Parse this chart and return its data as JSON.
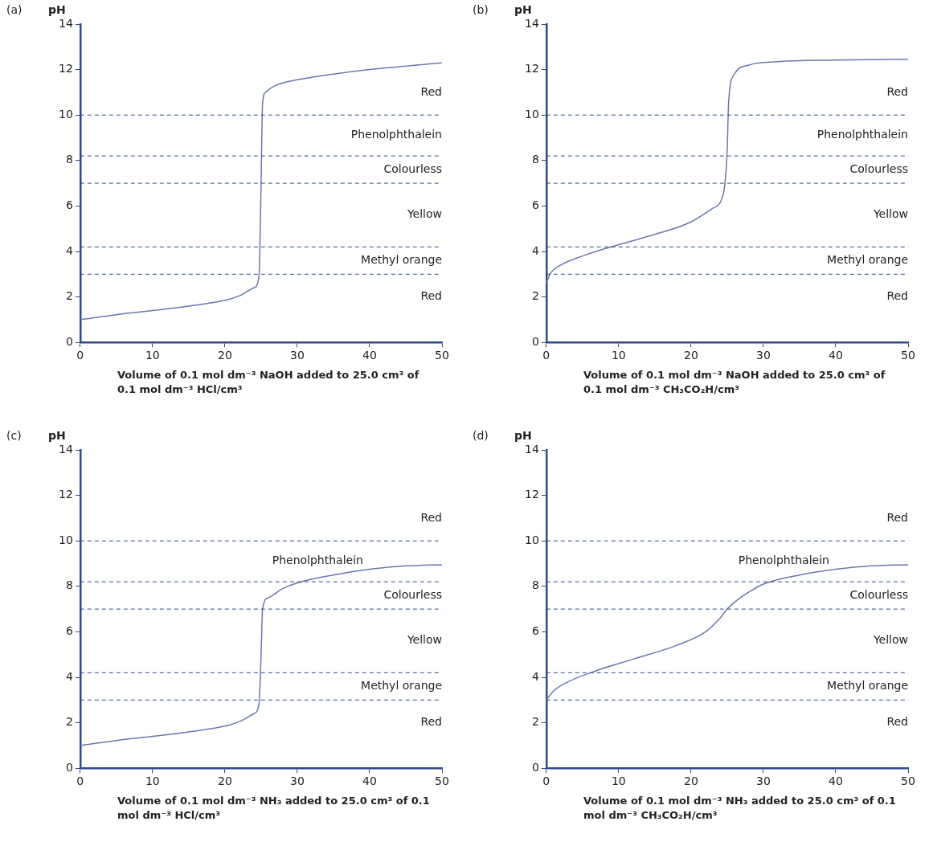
{
  "chart_data": [
    {
      "type": "line",
      "title": "(a)",
      "ylabel": "pH",
      "xlabel": "Volume of 0.1 mol dm⁻³ NaOH added to 25.0 cm³ of 0.1 mol dm⁻³ HCl/cm³",
      "xlim": [
        0,
        50
      ],
      "ylim": [
        0,
        14
      ],
      "xticks": [
        0,
        10,
        20,
        30,
        40,
        50
      ],
      "yticks": [
        0,
        2,
        4,
        6,
        8,
        10,
        12,
        14
      ],
      "grid": false,
      "legend": false,
      "marker": "none",
      "line_style": "solid",
      "series": [
        {
          "color": "#6b78b0",
          "x": [
            0,
            5,
            10,
            15,
            20,
            22,
            24,
            24.7,
            25,
            25.2,
            25.6,
            27,
            30,
            35,
            40,
            45,
            50
          ],
          "values": [
            1,
            1.22,
            1.4,
            1.6,
            1.85,
            2.05,
            2.4,
            2.9,
            7,
            10.5,
            11,
            11.3,
            11.55,
            11.8,
            12,
            12.15,
            12.3
          ]
        }
      ],
      "ref_lines": [
        {
          "axis": "y",
          "value": 10,
          "color": "#2e4a8a",
          "line_style": "dashed"
        },
        {
          "axis": "y",
          "value": 8.2,
          "color": "#2e4a8a",
          "line_style": "dashed"
        },
        {
          "axis": "y",
          "value": 7,
          "color": "#2e4a8a",
          "line_style": "dashed"
        },
        {
          "axis": "y",
          "value": 4.2,
          "color": "#2e4a8a",
          "line_style": "dashed"
        },
        {
          "axis": "y",
          "value": 3,
          "color": "#2e4a8a",
          "line_style": "dashed"
        }
      ],
      "annotations": [
        "Red",
        "Phenolphthalein",
        "Colourless",
        "Yellow",
        "Methyl orange",
        "Red"
      ]
    },
    {
      "type": "line",
      "title": "(b)",
      "ylabel": "pH",
      "xlabel": "Volume of 0.1 mol dm⁻³ NaOH added to 25.0 cm³ of 0.1 mol dm⁻³ CH₃CO₂H/cm³",
      "xlim": [
        0,
        50
      ],
      "ylim": [
        0,
        14
      ],
      "xticks": [
        0,
        10,
        20,
        30,
        40,
        50
      ],
      "yticks": [
        0,
        2,
        4,
        6,
        8,
        10,
        12,
        14
      ],
      "grid": false,
      "legend": false,
      "marker": "none",
      "line_style": "solid",
      "series": [
        {
          "color": "#6b78b0",
          "x": [
            0,
            0.5,
            2,
            5,
            10,
            15,
            20,
            23,
            24.5,
            25,
            25.2,
            26,
            28,
            32,
            40,
            50
          ],
          "values": [
            2.6,
            3,
            3.4,
            3.8,
            4.3,
            4.75,
            5.3,
            5.9,
            6.6,
            8.5,
            10.6,
            11.8,
            12.2,
            12.35,
            12.42,
            12.45
          ]
        }
      ],
      "ref_lines": [
        {
          "axis": "y",
          "value": 10,
          "color": "#2e4a8a",
          "line_style": "dashed"
        },
        {
          "axis": "y",
          "value": 8.2,
          "color": "#2e4a8a",
          "line_style": "dashed"
        },
        {
          "axis": "y",
          "value": 7,
          "color": "#2e4a8a",
          "line_style": "dashed"
        },
        {
          "axis": "y",
          "value": 4.2,
          "color": "#2e4a8a",
          "line_style": "dashed"
        },
        {
          "axis": "y",
          "value": 3,
          "color": "#2e4a8a",
          "line_style": "dashed"
        }
      ],
      "annotations": [
        "Red",
        "Phenolphthalein",
        "Colourless",
        "Yellow",
        "Methyl orange",
        "Red"
      ]
    },
    {
      "type": "line",
      "title": "(c)",
      "ylabel": "pH",
      "xlabel": "Volume of 0.1 mol dm⁻³ NH₃ added to 25.0 cm³ of 0.1 mol dm⁻³ HCl/cm³",
      "xlim": [
        0,
        50
      ],
      "ylim": [
        0,
        14
      ],
      "xticks": [
        0,
        10,
        20,
        30,
        40,
        50
      ],
      "yticks": [
        0,
        2,
        4,
        6,
        8,
        10,
        12,
        14
      ],
      "grid": false,
      "legend": false,
      "marker": "none",
      "line_style": "solid",
      "series": [
        {
          "color": "#6b78b0",
          "x": [
            0,
            5,
            10,
            15,
            20,
            22,
            24,
            24.7,
            25,
            25.2,
            26,
            28,
            30,
            35,
            40,
            45,
            50
          ],
          "values": [
            1,
            1.22,
            1.4,
            1.6,
            1.85,
            2.05,
            2.4,
            2.8,
            5,
            7,
            7.5,
            7.9,
            8.15,
            8.5,
            8.75,
            8.9,
            8.95
          ]
        }
      ],
      "ref_lines": [
        {
          "axis": "y",
          "value": 10,
          "color": "#2e4a8a",
          "line_style": "dashed"
        },
        {
          "axis": "y",
          "value": 8.2,
          "color": "#2e4a8a",
          "line_style": "dashed"
        },
        {
          "axis": "y",
          "value": 7,
          "color": "#2e4a8a",
          "line_style": "dashed"
        },
        {
          "axis": "y",
          "value": 4.2,
          "color": "#2e4a8a",
          "line_style": "dashed"
        },
        {
          "axis": "y",
          "value": 3,
          "color": "#2e4a8a",
          "line_style": "dashed"
        }
      ],
      "annotations": [
        "Red",
        "Phenolphthalein",
        "Colourless",
        "Yellow",
        "Methyl orange",
        "Red"
      ]
    },
    {
      "type": "line",
      "title": "(d)",
      "ylabel": "pH",
      "xlabel": "Volume of 0.1 mol dm⁻³ NH₃ added to 25.0 cm³ of 0.1 mol dm⁻³ CH₃CO₂H/cm³",
      "xlim": [
        0,
        50
      ],
      "ylim": [
        0,
        14
      ],
      "xticks": [
        0,
        10,
        20,
        30,
        40,
        50
      ],
      "yticks": [
        0,
        2,
        4,
        6,
        8,
        10,
        12,
        14
      ],
      "grid": false,
      "legend": false,
      "marker": "none",
      "line_style": "solid",
      "series": [
        {
          "color": "#6b78b0",
          "x": [
            0,
            1,
            3,
            7,
            12,
            18,
            22,
            24,
            25,
            26,
            28,
            30,
            35,
            40,
            45,
            50
          ],
          "values": [
            3,
            3.4,
            3.8,
            4.3,
            4.8,
            5.4,
            6,
            6.6,
            7,
            7.3,
            7.75,
            8.1,
            8.5,
            8.75,
            8.9,
            8.95
          ]
        }
      ],
      "ref_lines": [
        {
          "axis": "y",
          "value": 10,
          "color": "#2e4a8a",
          "line_style": "dashed"
        },
        {
          "axis": "y",
          "value": 8.2,
          "color": "#2e4a8a",
          "line_style": "dashed"
        },
        {
          "axis": "y",
          "value": 7,
          "color": "#2e4a8a",
          "line_style": "dashed"
        },
        {
          "axis": "y",
          "value": 4.2,
          "color": "#2e4a8a",
          "line_style": "dashed"
        },
        {
          "axis": "y",
          "value": 3,
          "color": "#2e4a8a",
          "line_style": "dashed"
        }
      ],
      "annotations": [
        "Red",
        "Phenolphthalein",
        "Colourless",
        "Yellow",
        "Methyl orange",
        "Red"
      ]
    }
  ]
}
